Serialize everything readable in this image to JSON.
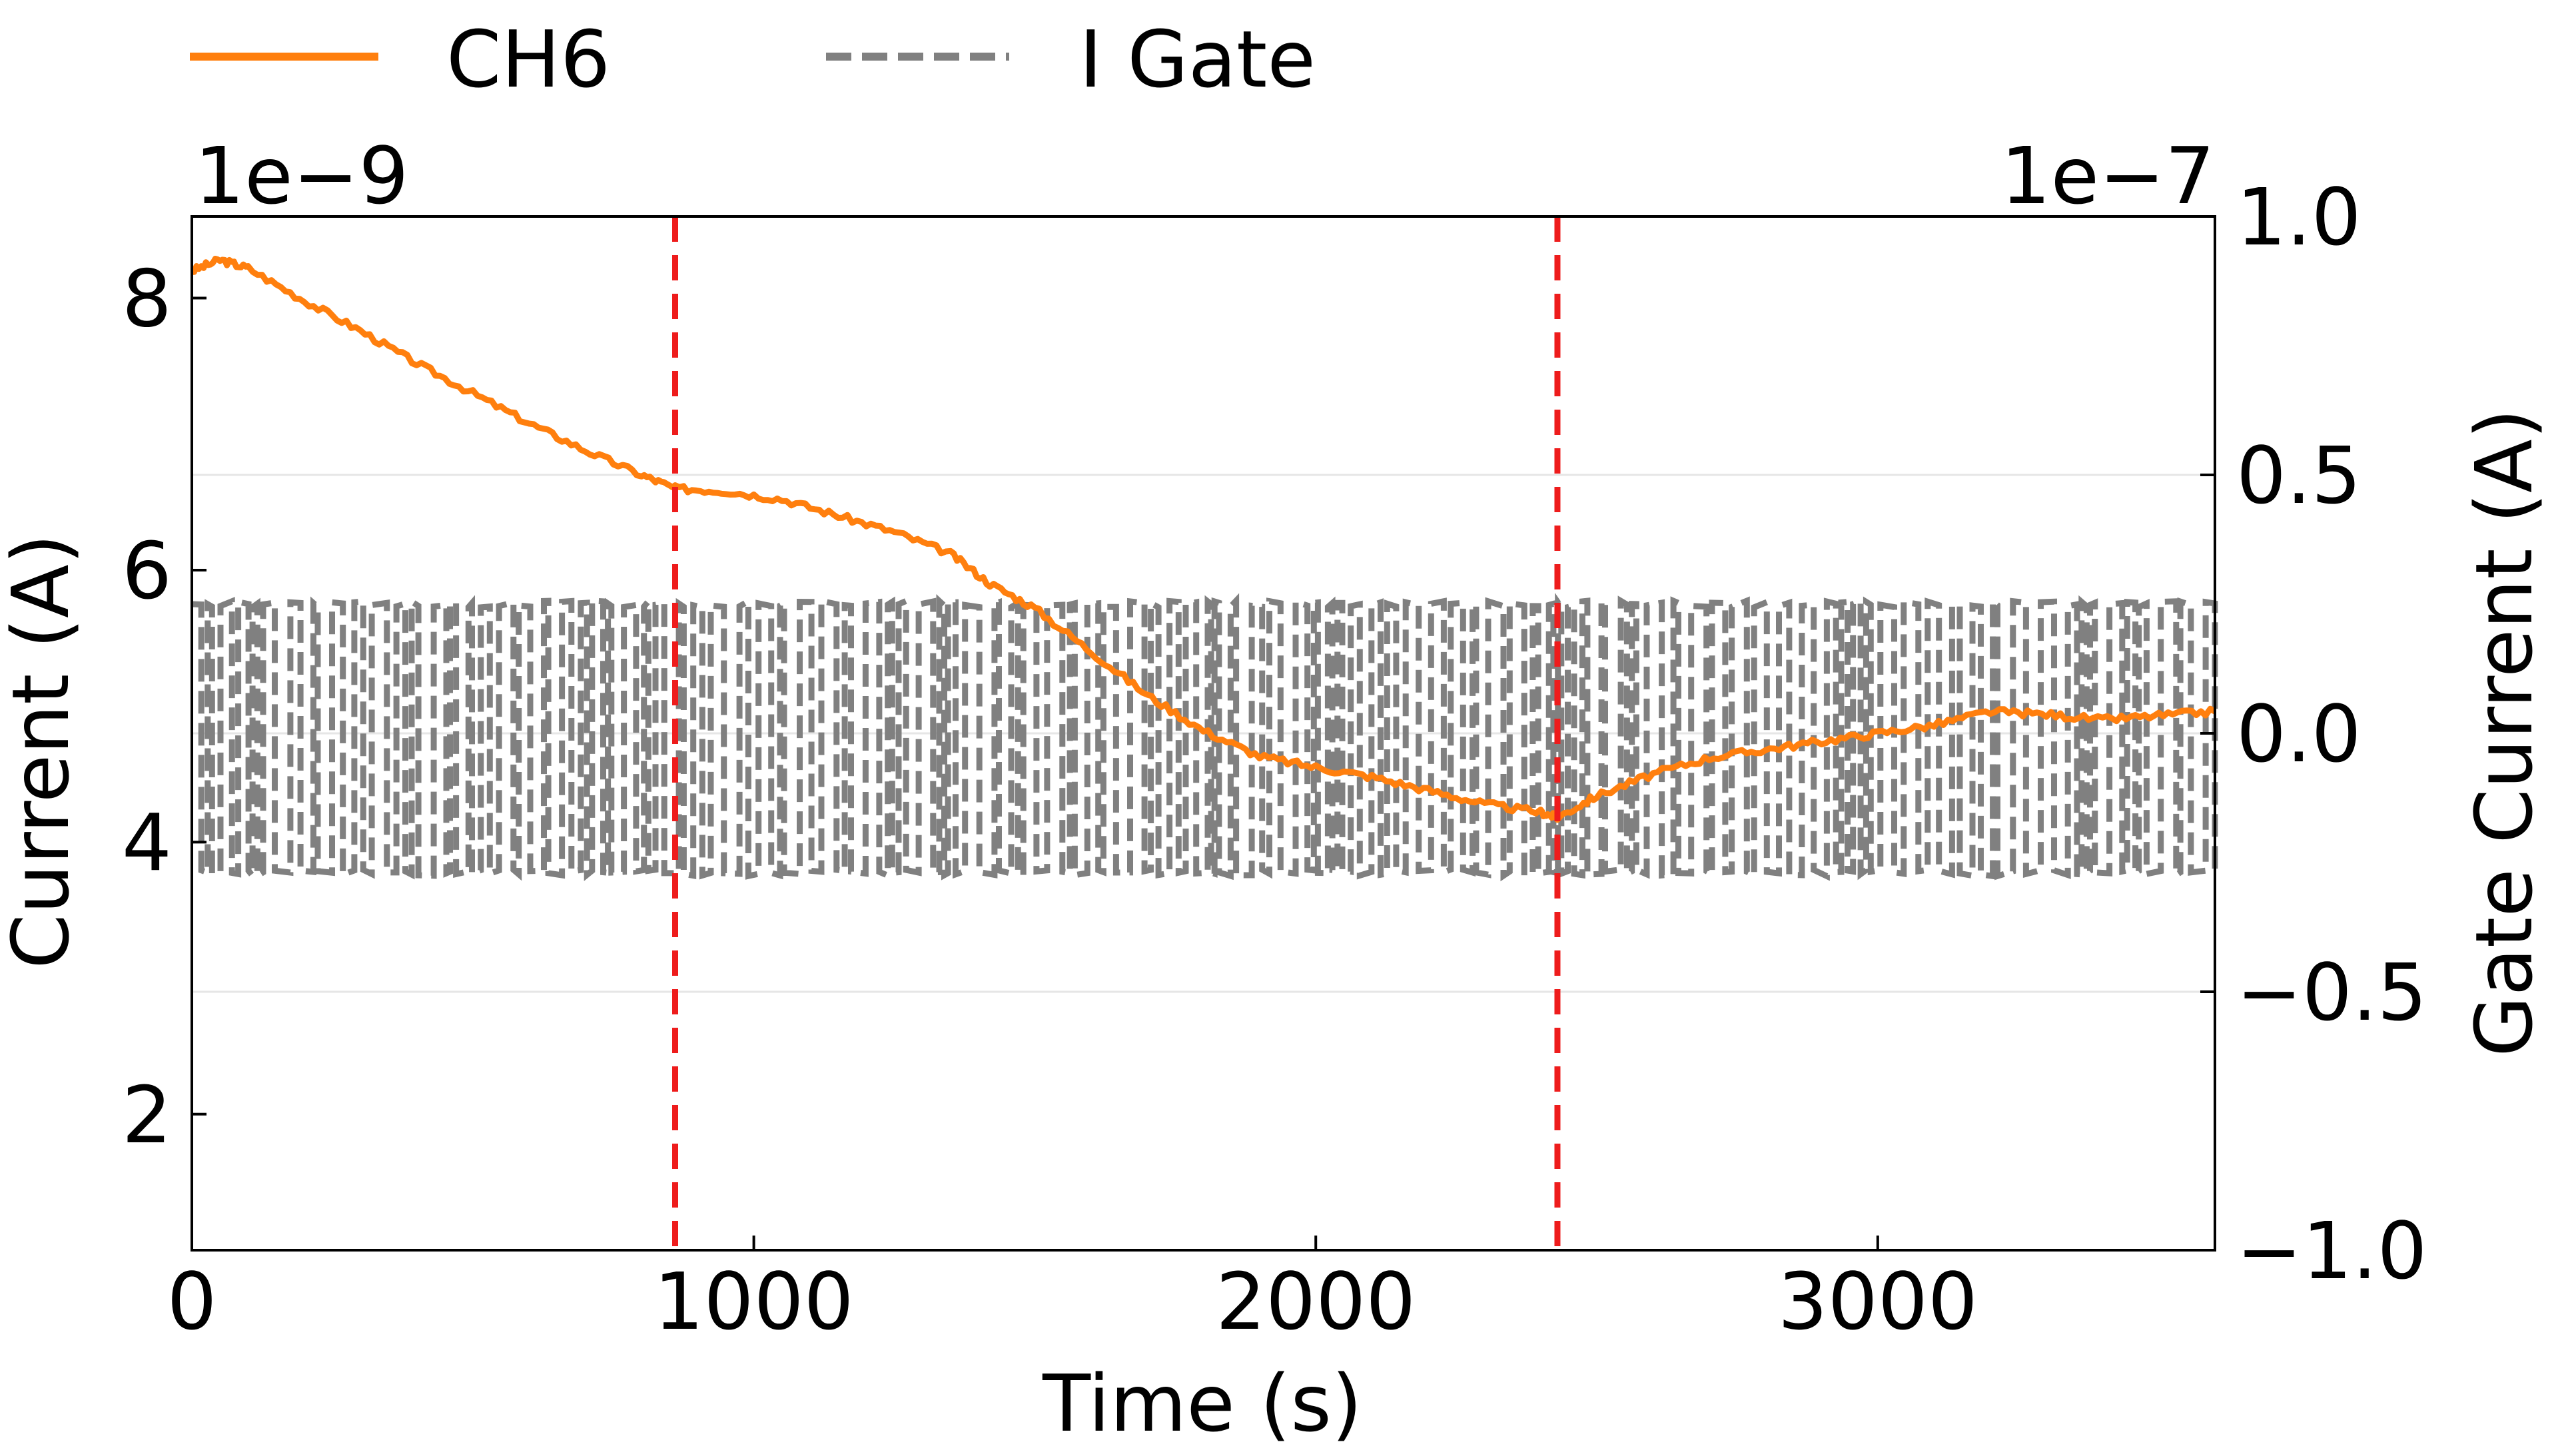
{
  "chart_data": {
    "type": "line",
    "xlabel": "Time (s)",
    "ylabel": "Current (A)",
    "y2label": "Gate Current (A)",
    "xlim": [
      0,
      3600
    ],
    "ylim": [
      1.0,
      8.6
    ],
    "y2lim": [
      -1.0,
      1.0
    ],
    "y_offset_text": "1e−9",
    "y2_offset_text": "1e−7",
    "x_ticks": [
      0,
      1000,
      2000,
      3000
    ],
    "x_tick_labels": [
      "0",
      "1000",
      "2000",
      "3000"
    ],
    "y_ticks": [
      2,
      4,
      6,
      8
    ],
    "y_tick_labels": [
      "2",
      "4",
      "6",
      "8"
    ],
    "y2_ticks": [
      -1.0,
      -0.5,
      0.0,
      0.5,
      1.0
    ],
    "y2_tick_labels": [
      "−1.0",
      "−0.5",
      "0.0",
      "0.5",
      "1.0"
    ],
    "grid": "horizontal lines at right-axis ticks",
    "legend_position": "top, above the plot",
    "vertical_markers": [
      860,
      2430
    ],
    "marker_color": "#ee1c1c",
    "series": [
      {
        "name": "CH6",
        "axis": "left",
        "color": "#ff7f0e",
        "style": "solid",
        "x": [
          0,
          50,
          100,
          200,
          300,
          400,
          500,
          600,
          700,
          800,
          860,
          950,
          1050,
          1150,
          1250,
          1350,
          1420,
          1500,
          1600,
          1700,
          1800,
          1900,
          2000,
          2100,
          2200,
          2300,
          2400,
          2430,
          2500,
          2600,
          2700,
          2800,
          2900,
          3000,
          3100,
          3200,
          3300,
          3400,
          3500,
          3600
        ],
        "y": [
          8.2,
          8.28,
          8.22,
          7.98,
          7.76,
          7.52,
          7.3,
          7.08,
          6.88,
          6.7,
          6.6,
          6.58,
          6.52,
          6.4,
          6.28,
          6.12,
          5.9,
          5.72,
          5.4,
          5.08,
          4.82,
          4.63,
          4.55,
          4.48,
          4.38,
          4.28,
          4.22,
          4.18,
          4.34,
          4.5,
          4.62,
          4.68,
          4.74,
          4.8,
          4.86,
          4.96,
          4.94,
          4.9,
          4.93,
          4.96
        ]
      },
      {
        "name": "I Gate",
        "axis": "right",
        "color": "#808080",
        "style": "dashed",
        "pattern": "rapid square-wave switching between high and low levels",
        "high_level": 0.25,
        "low_level": -0.27,
        "x_range": [
          0,
          3600
        ]
      }
    ]
  }
}
